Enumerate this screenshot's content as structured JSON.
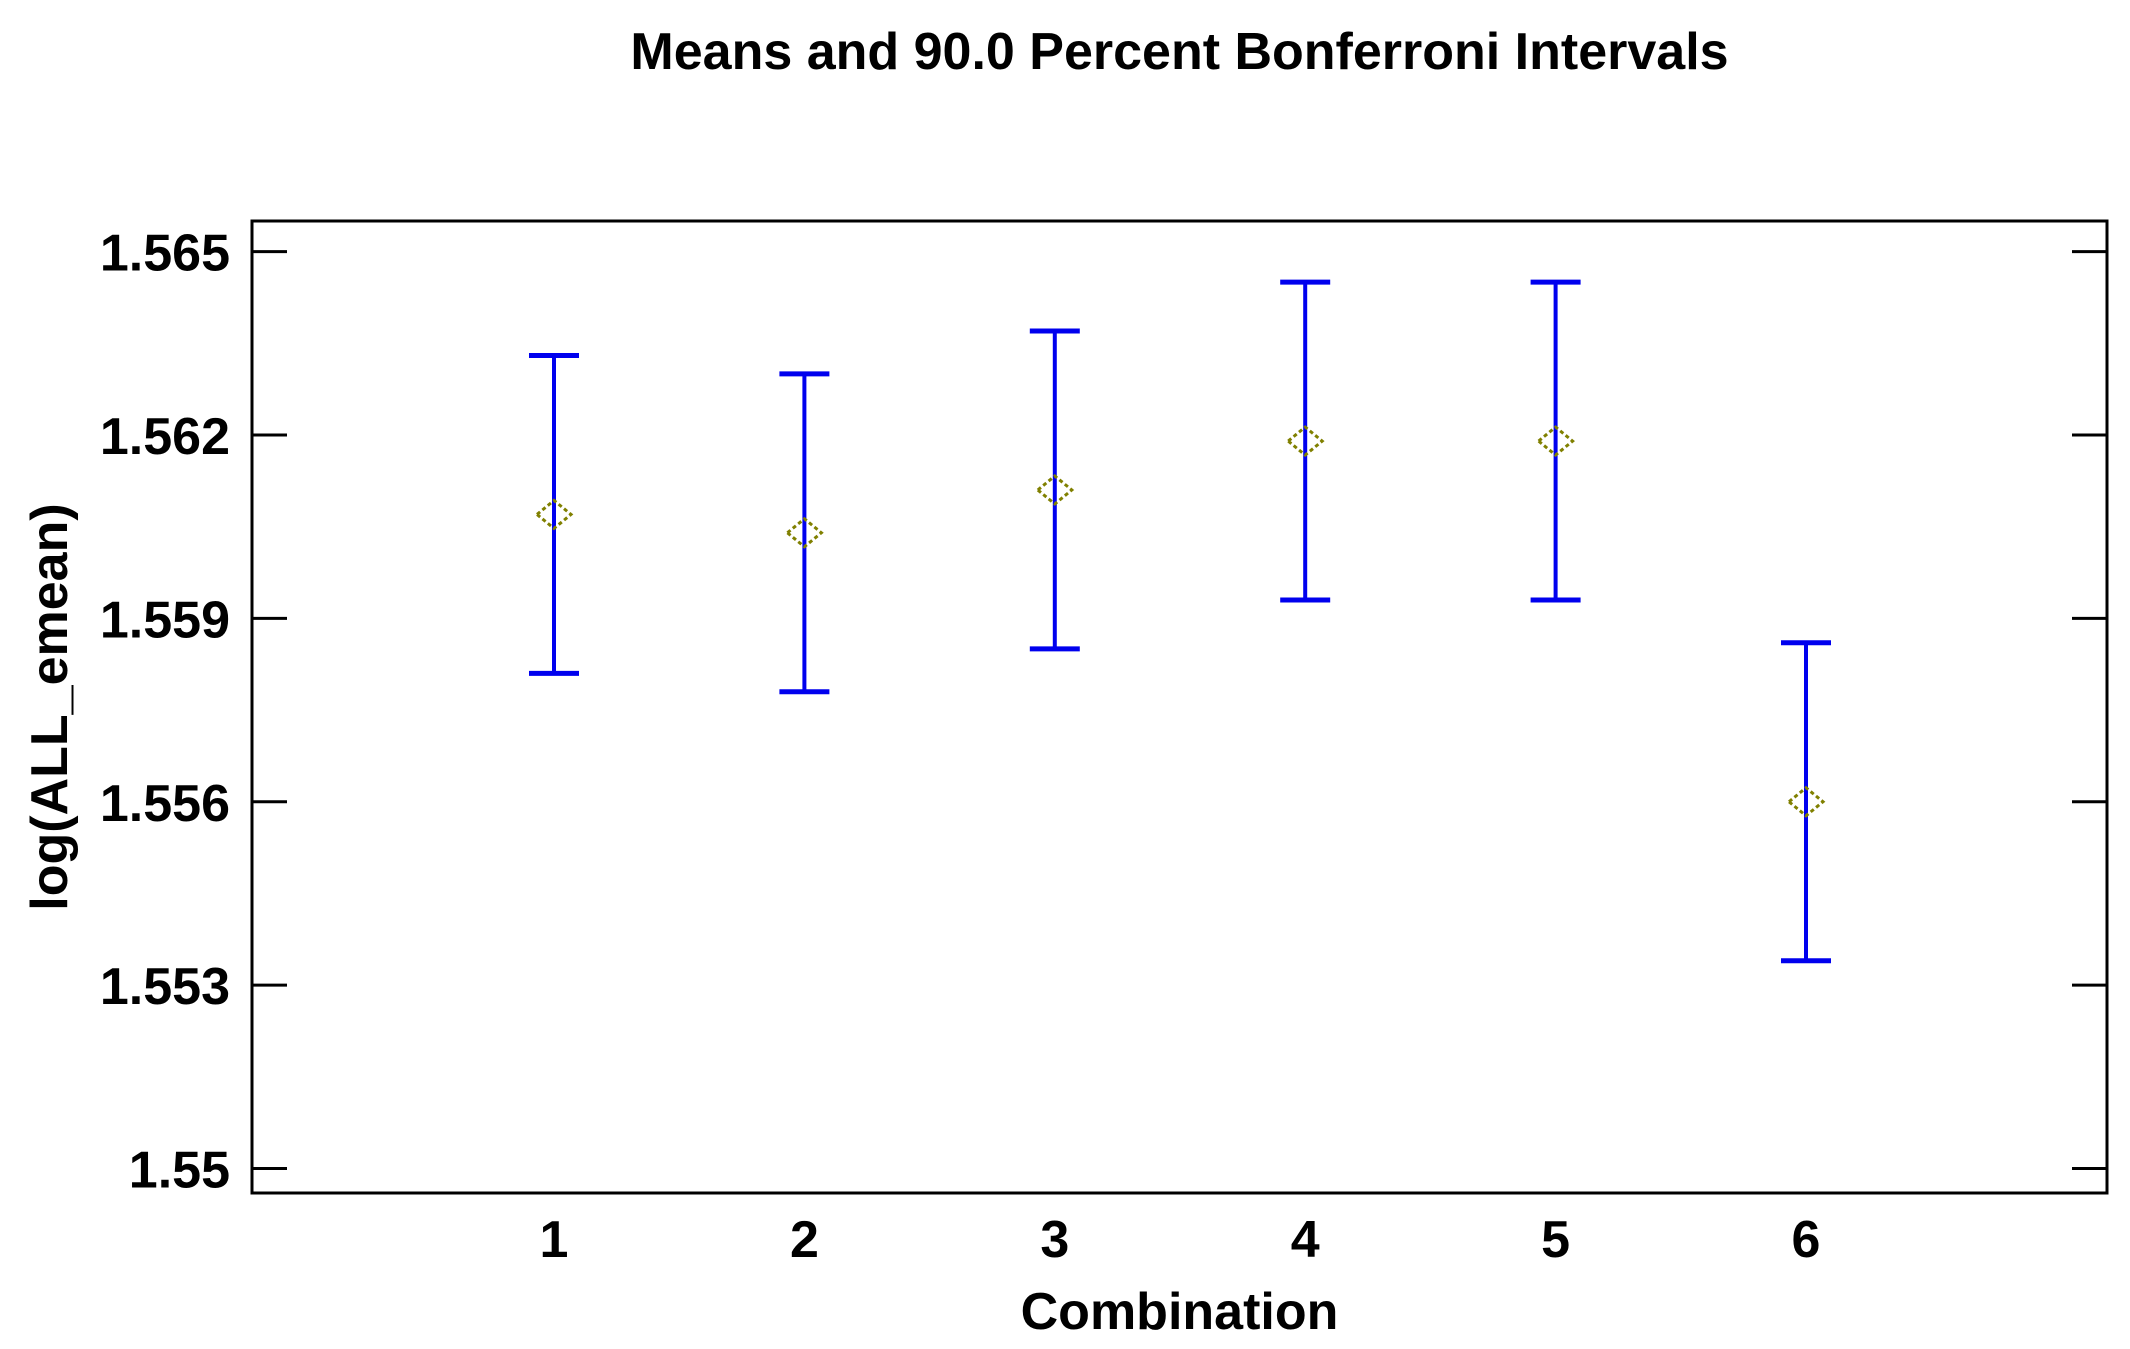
{
  "figure": {
    "background": "#ffffff"
  },
  "chart_data": {
    "type": "scatter",
    "subtype": "means_with_error_bars",
    "title": "Means and 90.0 Percent Bonferroni Intervals",
    "xlabel": "Combination",
    "ylabel": "log(ALL_emean)",
    "confidence_intervals": "90.0 Percent Bonferroni",
    "categories": [
      "1",
      "2",
      "3",
      "4",
      "5",
      "6"
    ],
    "series": [
      {
        "name": "mean",
        "values": [
          1.5607,
          1.5604,
          1.5611,
          1.5619,
          1.5619,
          1.556
        ]
      },
      {
        "name": "lower_bound",
        "values": [
          1.5581,
          1.5578,
          1.5585,
          1.5593,
          1.5593,
          1.5534
        ]
      },
      {
        "name": "upper_bound",
        "values": [
          1.5633,
          1.563,
          1.5637,
          1.5645,
          1.5645,
          1.5586
        ]
      }
    ],
    "ylim": [
      1.5496,
      1.5655
    ],
    "yticks": [
      1.55,
      1.553,
      1.556,
      1.559,
      1.562,
      1.565
    ],
    "ytick_labels": [
      "1.55",
      "1.553",
      "1.556",
      "1.559",
      "1.562",
      "1.565"
    ],
    "grid": false,
    "marker": "open-diamond",
    "legend_position": "none",
    "colors": {
      "interval": "#0000ee",
      "marker": "#808000",
      "axis": "#000000",
      "text": "#000000",
      "background": "#ffffff"
    }
  }
}
